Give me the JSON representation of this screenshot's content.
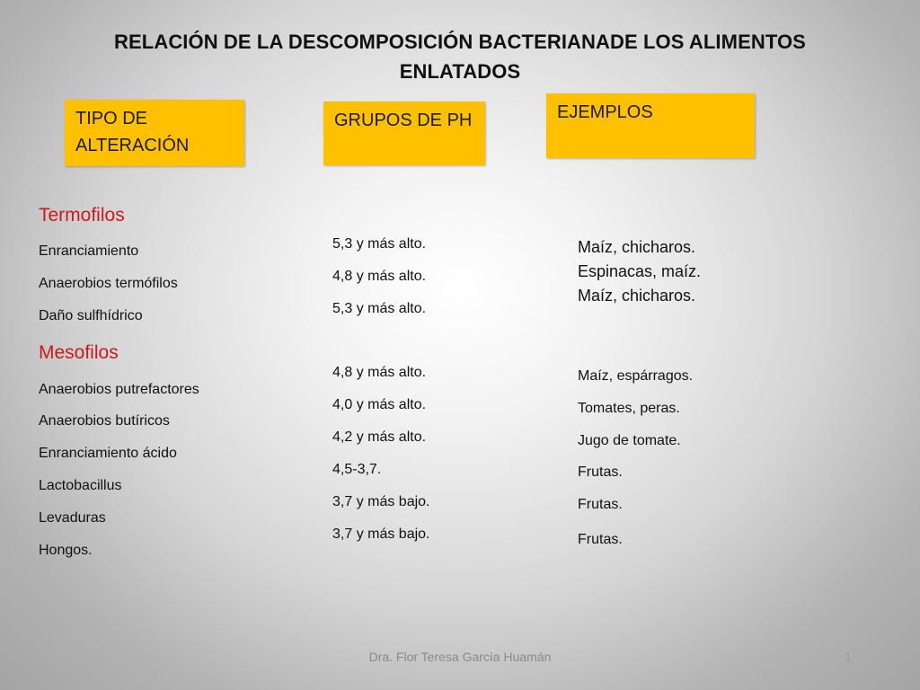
{
  "slide": {
    "title_line1": "RELACIÓN DE LA DESCOMPOSICIÓN BACTERIANADE LOS ALIMENTOS",
    "title_line2": "ENLATADOS",
    "headers": {
      "tipo_line1": "TIPO DE",
      "tipo_line2": "ALTERACIÓN",
      "grupos": "GRUPOS DE PH",
      "ejemplos": "EJEMPLOS"
    },
    "tipos": {
      "termofilos": "Termofilos",
      "termo_items": [
        "Enranciamiento",
        "Anaerobios termófilos",
        "Daño sulfhídrico"
      ],
      "mesofilos": "Mesofilos",
      "meso_items": [
        "Anaerobios putrefactores",
        "Anaerobios butíricos",
        "Enranciamiento ácido",
        "Lactobacillus",
        "Levaduras",
        "Hongos."
      ]
    },
    "ph": [
      "5,3 y más alto.",
      "4,8 y más alto.",
      "5,3 y más alto.",
      "4,8 y más alto.",
      "4,0 y más alto.",
      "4,2 y más alto.",
      "4,5-3,7.",
      "3,7 y más bajo.",
      "3,7 y más bajo."
    ],
    "ejemplos_termo": [
      "Maíz, chicharos.",
      "Espinacas, maíz.",
      "Maíz, chicharos."
    ],
    "ejemplos_meso": [
      "Maíz, espárragos.",
      "Tomates, peras.",
      "Jugo de tomate.",
      "Frutas.",
      "Frutas.",
      "Frutas."
    ],
    "footer": "Dra. Flor Teresa García Huamán",
    "page_number": "1"
  }
}
